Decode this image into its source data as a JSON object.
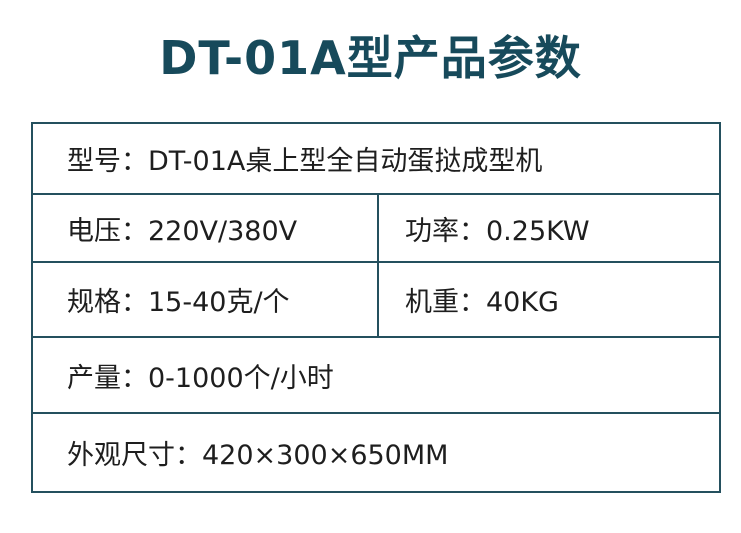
{
  "title": "DT-01A型产品参数",
  "rows": [
    {
      "cells": [
        {
          "text": "型号：DT-01A桌上型全自动蛋挞成型机"
        }
      ]
    },
    {
      "cells": [
        {
          "text": "电压：220V/380V"
        },
        {
          "text": "功率：0.25KW"
        }
      ]
    },
    {
      "cells": [
        {
          "text": "规格：15-40克/个"
        },
        {
          "text": "机重：40KG"
        }
      ]
    },
    {
      "cells": [
        {
          "text": "产量：0-1000个/小时"
        }
      ]
    },
    {
      "cells": [
        {
          "text": "外观尺寸：420×300×650MM"
        }
      ]
    }
  ]
}
